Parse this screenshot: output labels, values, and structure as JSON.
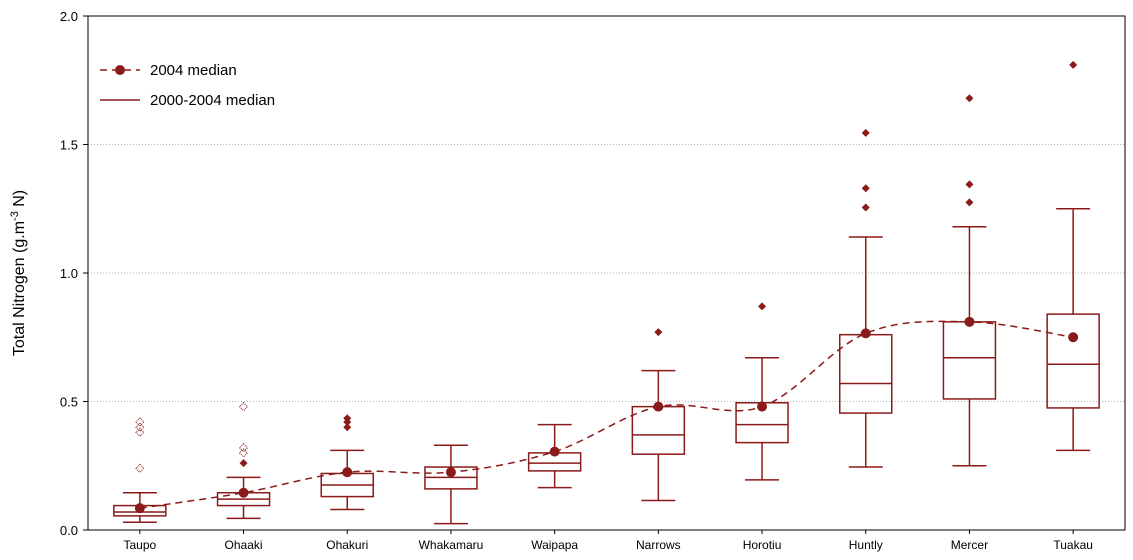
{
  "chart_data": {
    "type": "box",
    "ylabel": {
      "main": "Total Nitrogen (g.m",
      "sup": "-3",
      "tail": " N)"
    },
    "ylim": [
      0,
      2.0
    ],
    "yticks": [
      "0.0",
      "0.5",
      "1.0",
      "1.5",
      "2.0"
    ],
    "grid": "horizontal dotted",
    "legend_position": "top-left",
    "colors": {
      "series": "#8b1a1a"
    },
    "legend": [
      {
        "label": "2004 median",
        "style": "dashed line with dot"
      },
      {
        "label": "2000-2004 median",
        "style": "solid line"
      }
    ],
    "categories": [
      "Taupo",
      "Ohaaki",
      "Ohakuri",
      "Whakamaru",
      "Waipapa",
      "Narrows",
      "Horotiu",
      "Huntly",
      "Mercer",
      "Tuakau"
    ],
    "boxes": [
      {
        "whisker_low": 0.03,
        "q1": 0.055,
        "median": 0.07,
        "q3": 0.095,
        "whisker_high": 0.145,
        "outliers": [
          0.24,
          0.38,
          0.4,
          0.42
        ],
        "outlier_style": "hollow"
      },
      {
        "whisker_low": 0.045,
        "q1": 0.095,
        "median": 0.12,
        "q3": 0.145,
        "whisker_high": 0.205,
        "outliers": [
          0.26,
          0.3,
          0.32,
          0.48
        ],
        "outlier_style": "mixed"
      },
      {
        "whisker_low": 0.08,
        "q1": 0.13,
        "median": 0.175,
        "q3": 0.22,
        "whisker_high": 0.31,
        "outliers": [
          0.4,
          0.42,
          0.435
        ],
        "outlier_style": "solid"
      },
      {
        "whisker_low": 0.025,
        "q1": 0.16,
        "median": 0.205,
        "q3": 0.245,
        "whisker_high": 0.33,
        "outliers": [],
        "outlier_style": "solid"
      },
      {
        "whisker_low": 0.165,
        "q1": 0.23,
        "median": 0.26,
        "q3": 0.3,
        "whisker_high": 0.41,
        "outliers": [],
        "outlier_style": "solid"
      },
      {
        "whisker_low": 0.115,
        "q1": 0.295,
        "median": 0.37,
        "q3": 0.48,
        "whisker_high": 0.62,
        "outliers": [
          0.77
        ],
        "outlier_style": "solid"
      },
      {
        "whisker_low": 0.195,
        "q1": 0.34,
        "median": 0.41,
        "q3": 0.495,
        "whisker_high": 0.67,
        "outliers": [
          0.87
        ],
        "outlier_style": "solid"
      },
      {
        "whisker_low": 0.245,
        "q1": 0.455,
        "median": 0.57,
        "q3": 0.76,
        "whisker_high": 1.14,
        "outliers": [
          1.255,
          1.33,
          1.545
        ],
        "outlier_style": "solid"
      },
      {
        "whisker_low": 0.25,
        "q1": 0.51,
        "median": 0.67,
        "q3": 0.81,
        "whisker_high": 1.18,
        "outliers": [
          1.275,
          1.345,
          1.68
        ],
        "outlier_style": "solid"
      },
      {
        "whisker_low": 0.31,
        "q1": 0.475,
        "median": 0.645,
        "q3": 0.84,
        "whisker_high": 1.25,
        "outliers": [
          1.81
        ],
        "outlier_style": "solid"
      }
    ],
    "median_2004": [
      0.085,
      0.145,
      0.225,
      0.225,
      0.305,
      0.48,
      0.48,
      0.765,
      0.81,
      0.75
    ]
  }
}
